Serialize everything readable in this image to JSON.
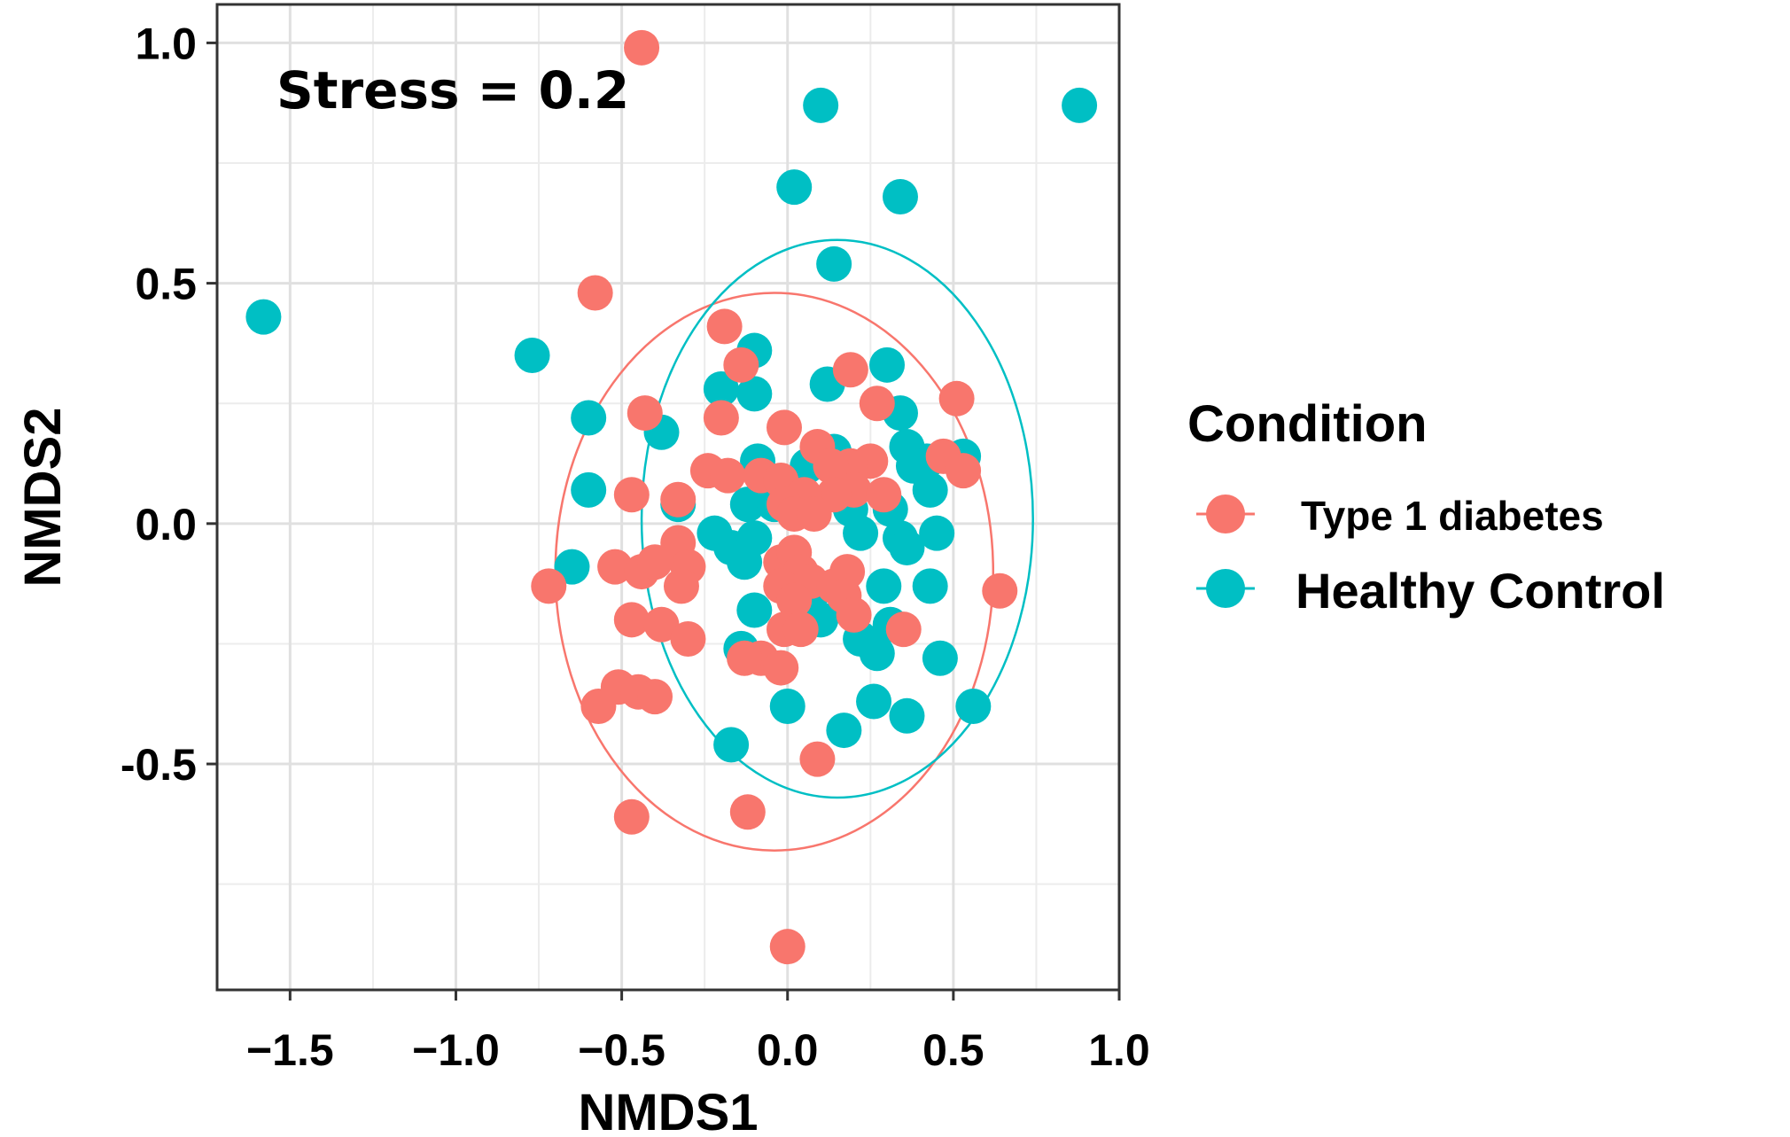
{
  "chart_data": {
    "type": "scatter",
    "title": "",
    "xlabel": "NMDS1",
    "ylabel": "NMDS2",
    "xlim": [
      -1.72,
      1.0
    ],
    "ylim": [
      -0.97,
      1.08
    ],
    "xticks": [
      -1.5,
      -1.0,
      -0.5,
      0.0,
      0.5,
      1.0
    ],
    "xtick_labels": [
      "−1.5",
      "−1.0",
      "−0.5",
      "0.0",
      "0.5",
      "1.0"
    ],
    "yticks": [
      -0.5,
      0.0,
      0.5,
      1.0
    ],
    "ytick_labels": [
      "-0.5",
      "0.0",
      "0.5",
      "1.0"
    ],
    "x_minor_gridlines": [
      -1.25,
      -0.75,
      -0.25,
      0.25,
      0.75
    ],
    "y_minor_gridlines": [
      -0.75,
      -0.25,
      0.25,
      0.75
    ],
    "grid": true,
    "annotation": "Stress = 0.2",
    "legend": {
      "title": "Condition",
      "position": "right",
      "entries": [
        "Type 1 diabetes",
        "Healthy Control"
      ]
    },
    "series": [
      {
        "name": "Type 1 diabetes",
        "color": "#f8766d",
        "ellipse": {
          "cx": -0.04,
          "cy": -0.1,
          "rx": 0.66,
          "ry": 0.58
        },
        "points": [
          [
            -0.44,
            0.99
          ],
          [
            -0.58,
            0.48
          ],
          [
            -0.19,
            0.41
          ],
          [
            -0.14,
            0.33
          ],
          [
            0.19,
            0.32
          ],
          [
            0.51,
            0.26
          ],
          [
            -0.43,
            0.23
          ],
          [
            -0.2,
            0.22
          ],
          [
            0.27,
            0.25
          ],
          [
            -0.01,
            0.2
          ],
          [
            0.09,
            0.16
          ],
          [
            0.25,
            0.13
          ],
          [
            0.47,
            0.14
          ],
          [
            0.53,
            0.11
          ],
          [
            0.19,
            0.12
          ],
          [
            0.13,
            0.12
          ],
          [
            -0.24,
            0.11
          ],
          [
            -0.18,
            0.1
          ],
          [
            -0.08,
            0.1
          ],
          [
            -0.02,
            0.09
          ],
          [
            0.2,
            0.07
          ],
          [
            0.14,
            0.06
          ],
          [
            -0.47,
            0.06
          ],
          [
            0.29,
            0.06
          ],
          [
            -0.33,
            0.05
          ],
          [
            0.05,
            0.06
          ],
          [
            -0.01,
            0.04
          ],
          [
            0.02,
            0.02
          ],
          [
            0.08,
            0.02
          ],
          [
            -0.33,
            -0.04
          ],
          [
            -0.3,
            -0.09
          ],
          [
            -0.72,
            -0.13
          ],
          [
            -0.52,
            -0.09
          ],
          [
            -0.44,
            -0.1
          ],
          [
            -0.4,
            -0.08
          ],
          [
            -0.32,
            -0.13
          ],
          [
            -0.02,
            -0.08
          ],
          [
            0.02,
            -0.06
          ],
          [
            0.04,
            -0.1
          ],
          [
            -0.02,
            -0.13
          ],
          [
            0.07,
            -0.12
          ],
          [
            0.18,
            -0.1
          ],
          [
            0.14,
            -0.13
          ],
          [
            0.17,
            -0.15
          ],
          [
            0.2,
            -0.19
          ],
          [
            0.64,
            -0.14
          ],
          [
            0.35,
            -0.22
          ],
          [
            -0.47,
            -0.2
          ],
          [
            -0.38,
            -0.21
          ],
          [
            -0.3,
            -0.24
          ],
          [
            0.02,
            -0.16
          ],
          [
            -0.01,
            -0.22
          ],
          [
            0.04,
            -0.22
          ],
          [
            -0.08,
            -0.28
          ],
          [
            -0.13,
            -0.28
          ],
          [
            -0.02,
            -0.3
          ],
          [
            -0.51,
            -0.34
          ],
          [
            -0.45,
            -0.35
          ],
          [
            -0.57,
            -0.38
          ],
          [
            -0.4,
            -0.36
          ],
          [
            0.09,
            -0.49
          ],
          [
            -0.47,
            -0.61
          ],
          [
            -0.12,
            -0.6
          ],
          [
            0.0,
            -0.88
          ]
        ]
      },
      {
        "name": "Healthy Control",
        "color": "#00bfc4",
        "ellipse": {
          "cx": 0.15,
          "cy": 0.01,
          "rx": 0.59,
          "ry": 0.58
        },
        "points": [
          [
            0.1,
            0.87
          ],
          [
            0.88,
            0.87
          ],
          [
            0.02,
            0.7
          ],
          [
            0.34,
            0.68
          ],
          [
            0.14,
            0.54
          ],
          [
            -1.58,
            0.43
          ],
          [
            -0.77,
            0.35
          ],
          [
            -0.1,
            0.36
          ],
          [
            0.3,
            0.33
          ],
          [
            0.12,
            0.29
          ],
          [
            -0.2,
            0.28
          ],
          [
            -0.1,
            0.27
          ],
          [
            0.34,
            0.23
          ],
          [
            -0.6,
            0.22
          ],
          [
            -0.38,
            0.19
          ],
          [
            0.36,
            0.16
          ],
          [
            0.1,
            0.15
          ],
          [
            0.14,
            0.15
          ],
          [
            0.06,
            0.12
          ],
          [
            -0.09,
            0.13
          ],
          [
            0.42,
            0.13
          ],
          [
            0.53,
            0.14
          ],
          [
            0.38,
            0.12
          ],
          [
            -0.6,
            0.07
          ],
          [
            -0.33,
            0.04
          ],
          [
            0.43,
            0.07
          ],
          [
            -0.12,
            0.04
          ],
          [
            0.03,
            0.06
          ],
          [
            0.19,
            0.03
          ],
          [
            0.31,
            0.03
          ],
          [
            -0.04,
            0.04
          ],
          [
            -0.22,
            -0.02
          ],
          [
            -0.17,
            -0.05
          ],
          [
            -0.1,
            -0.03
          ],
          [
            0.22,
            -0.02
          ],
          [
            0.34,
            -0.03
          ],
          [
            0.45,
            -0.02
          ],
          [
            0.36,
            -0.05
          ],
          [
            -0.65,
            -0.09
          ],
          [
            -0.13,
            -0.08
          ],
          [
            0.03,
            -0.12
          ],
          [
            0.29,
            -0.13
          ],
          [
            0.43,
            -0.13
          ],
          [
            0.07,
            -0.15
          ],
          [
            -0.1,
            -0.18
          ],
          [
            0.1,
            -0.2
          ],
          [
            0.31,
            -0.21
          ],
          [
            0.22,
            -0.24
          ],
          [
            0.27,
            -0.27
          ],
          [
            -0.14,
            -0.26
          ],
          [
            0.46,
            -0.28
          ],
          [
            0.0,
            -0.38
          ],
          [
            0.26,
            -0.37
          ],
          [
            0.36,
            -0.4
          ],
          [
            0.56,
            -0.38
          ],
          [
            0.17,
            -0.43
          ],
          [
            -0.17,
            -0.46
          ]
        ]
      }
    ]
  }
}
